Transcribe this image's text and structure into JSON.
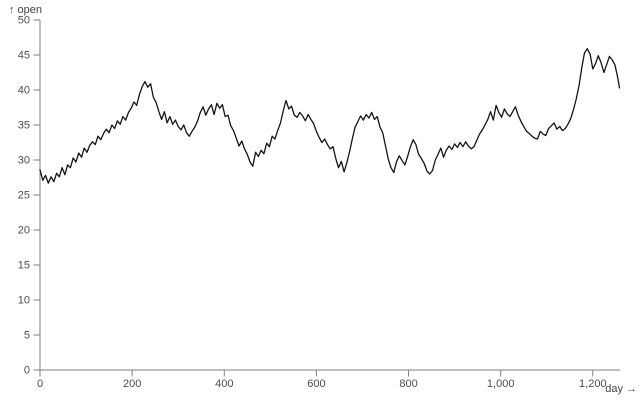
{
  "styles": {
    "background": "#ffffff",
    "axis_color": "#7f7f7f",
    "text_color": "#4d4d4d",
    "line_color": "#141414"
  },
  "chart_data": {
    "type": "line",
    "title": "",
    "grid": false,
    "legend": "none",
    "x_axis": {
      "label": "day",
      "title_display": "day →",
      "domain": [
        0,
        1259
      ],
      "ticks": [
        0,
        200,
        400,
        600,
        800,
        1000,
        1200
      ],
      "tick_labels": [
        "0",
        "200",
        "400",
        "600",
        "800",
        "1,000",
        "1,200"
      ]
    },
    "y_axis": {
      "label": "open",
      "title_display": "↑ open",
      "domain": [
        0,
        50
      ],
      "ticks": [
        0,
        5,
        10,
        15,
        20,
        25,
        30,
        35,
        40,
        45,
        50
      ],
      "tick_labels": [
        "0",
        "5",
        "10",
        "15",
        "20",
        "25",
        "30",
        "35",
        "40",
        "45",
        "50"
      ]
    },
    "series": [
      {
        "name": "open",
        "color": "#141414",
        "points": [
          [
            0,
            28.6
          ],
          [
            6,
            27.1
          ],
          [
            12,
            27.8
          ],
          [
            18,
            26.7
          ],
          [
            24,
            27.6
          ],
          [
            30,
            26.9
          ],
          [
            36,
            28.1
          ],
          [
            42,
            27.6
          ],
          [
            48,
            28.9
          ],
          [
            54,
            27.9
          ],
          [
            60,
            29.3
          ],
          [
            66,
            28.9
          ],
          [
            72,
            30.3
          ],
          [
            78,
            29.7
          ],
          [
            84,
            31.0
          ],
          [
            90,
            30.4
          ],
          [
            96,
            31.7
          ],
          [
            102,
            31.1
          ],
          [
            108,
            32.1
          ],
          [
            114,
            32.6
          ],
          [
            120,
            32.2
          ],
          [
            126,
            33.4
          ],
          [
            132,
            32.9
          ],
          [
            138,
            33.8
          ],
          [
            144,
            34.4
          ],
          [
            150,
            33.9
          ],
          [
            156,
            35.0
          ],
          [
            162,
            34.5
          ],
          [
            168,
            35.6
          ],
          [
            174,
            35.1
          ],
          [
            180,
            36.2
          ],
          [
            186,
            35.7
          ],
          [
            192,
            36.8
          ],
          [
            198,
            37.4
          ],
          [
            204,
            38.3
          ],
          [
            210,
            37.8
          ],
          [
            216,
            39.4
          ],
          [
            222,
            40.5
          ],
          [
            228,
            41.2
          ],
          [
            234,
            40.4
          ],
          [
            240,
            40.9
          ],
          [
            246,
            39.0
          ],
          [
            252,
            38.2
          ],
          [
            258,
            36.9
          ],
          [
            264,
            35.8
          ],
          [
            270,
            36.9
          ],
          [
            276,
            35.3
          ],
          [
            282,
            36.2
          ],
          [
            288,
            35.1
          ],
          [
            294,
            35.7
          ],
          [
            300,
            34.8
          ],
          [
            306,
            34.3
          ],
          [
            312,
            35.0
          ],
          [
            318,
            33.9
          ],
          [
            324,
            33.4
          ],
          [
            330,
            34.1
          ],
          [
            336,
            34.7
          ],
          [
            342,
            35.6
          ],
          [
            348,
            36.8
          ],
          [
            354,
            37.6
          ],
          [
            360,
            36.4
          ],
          [
            366,
            37.3
          ],
          [
            372,
            37.9
          ],
          [
            378,
            36.5
          ],
          [
            384,
            38.1
          ],
          [
            390,
            37.4
          ],
          [
            396,
            37.9
          ],
          [
            402,
            36.2
          ],
          [
            408,
            36.4
          ],
          [
            414,
            34.9
          ],
          [
            420,
            34.2
          ],
          [
            426,
            33.1
          ],
          [
            432,
            32.0
          ],
          [
            438,
            32.7
          ],
          [
            444,
            31.6
          ],
          [
            450,
            30.8
          ],
          [
            456,
            29.7
          ],
          [
            462,
            29.1
          ],
          [
            468,
            31.1
          ],
          [
            474,
            30.5
          ],
          [
            480,
            31.4
          ],
          [
            486,
            30.9
          ],
          [
            492,
            32.4
          ],
          [
            498,
            31.9
          ],
          [
            504,
            33.4
          ],
          [
            510,
            33.0
          ],
          [
            516,
            34.2
          ],
          [
            522,
            35.3
          ],
          [
            528,
            37.0
          ],
          [
            534,
            38.5
          ],
          [
            540,
            37.3
          ],
          [
            546,
            37.7
          ],
          [
            552,
            36.4
          ],
          [
            558,
            36.1
          ],
          [
            564,
            36.8
          ],
          [
            570,
            36.3
          ],
          [
            576,
            35.6
          ],
          [
            582,
            36.5
          ],
          [
            588,
            35.8
          ],
          [
            594,
            35.2
          ],
          [
            600,
            34.1
          ],
          [
            606,
            33.2
          ],
          [
            612,
            32.5
          ],
          [
            618,
            33.0
          ],
          [
            624,
            32.2
          ],
          [
            630,
            31.6
          ],
          [
            636,
            31.9
          ],
          [
            642,
            30.2
          ],
          [
            648,
            28.9
          ],
          [
            654,
            29.8
          ],
          [
            660,
            28.3
          ],
          [
            666,
            29.6
          ],
          [
            672,
            31.2
          ],
          [
            678,
            33.0
          ],
          [
            684,
            34.7
          ],
          [
            690,
            35.5
          ],
          [
            696,
            36.3
          ],
          [
            702,
            35.7
          ],
          [
            708,
            36.5
          ],
          [
            714,
            36.0
          ],
          [
            720,
            36.8
          ],
          [
            726,
            35.8
          ],
          [
            732,
            36.2
          ],
          [
            738,
            34.7
          ],
          [
            744,
            33.9
          ],
          [
            750,
            32.0
          ],
          [
            756,
            30.1
          ],
          [
            762,
            28.9
          ],
          [
            768,
            28.2
          ],
          [
            774,
            29.8
          ],
          [
            780,
            30.6
          ],
          [
            786,
            29.9
          ],
          [
            792,
            29.3
          ],
          [
            798,
            30.5
          ],
          [
            804,
            31.9
          ],
          [
            810,
            32.9
          ],
          [
            816,
            32.2
          ],
          [
            822,
            30.8
          ],
          [
            828,
            30.2
          ],
          [
            834,
            29.5
          ],
          [
            840,
            28.4
          ],
          [
            846,
            28.0
          ],
          [
            852,
            28.5
          ],
          [
            858,
            30.0
          ],
          [
            864,
            30.8
          ],
          [
            870,
            31.7
          ],
          [
            876,
            30.4
          ],
          [
            882,
            31.4
          ],
          [
            888,
            32.0
          ],
          [
            894,
            31.5
          ],
          [
            900,
            32.3
          ],
          [
            906,
            31.8
          ],
          [
            912,
            32.5
          ],
          [
            918,
            31.9
          ],
          [
            924,
            32.6
          ],
          [
            930,
            32.0
          ],
          [
            936,
            31.6
          ],
          [
            942,
            31.9
          ],
          [
            948,
            32.8
          ],
          [
            954,
            33.7
          ],
          [
            960,
            34.3
          ],
          [
            966,
            35.0
          ],
          [
            972,
            35.8
          ],
          [
            978,
            36.9
          ],
          [
            984,
            35.7
          ],
          [
            990,
            37.8
          ],
          [
            996,
            36.8
          ],
          [
            1002,
            36.1
          ],
          [
            1008,
            37.3
          ],
          [
            1014,
            36.6
          ],
          [
            1020,
            36.2
          ],
          [
            1026,
            36.9
          ],
          [
            1032,
            37.6
          ],
          [
            1038,
            36.4
          ],
          [
            1044,
            35.5
          ],
          [
            1050,
            34.8
          ],
          [
            1056,
            34.1
          ],
          [
            1062,
            33.8
          ],
          [
            1068,
            33.4
          ],
          [
            1074,
            33.1
          ],
          [
            1080,
            33.0
          ],
          [
            1086,
            34.1
          ],
          [
            1092,
            33.7
          ],
          [
            1098,
            33.5
          ],
          [
            1104,
            34.5
          ],
          [
            1110,
            34.9
          ],
          [
            1116,
            35.3
          ],
          [
            1122,
            34.4
          ],
          [
            1128,
            34.8
          ],
          [
            1134,
            34.2
          ],
          [
            1140,
            34.5
          ],
          [
            1146,
            35.1
          ],
          [
            1152,
            35.9
          ],
          [
            1158,
            37.2
          ],
          [
            1164,
            38.7
          ],
          [
            1170,
            40.6
          ],
          [
            1176,
            43.2
          ],
          [
            1182,
            45.3
          ],
          [
            1188,
            45.9
          ],
          [
            1194,
            45.1
          ],
          [
            1200,
            43.0
          ],
          [
            1206,
            43.8
          ],
          [
            1212,
            44.9
          ],
          [
            1218,
            43.9
          ],
          [
            1224,
            42.5
          ],
          [
            1230,
            43.6
          ],
          [
            1236,
            44.8
          ],
          [
            1242,
            44.3
          ],
          [
            1248,
            43.6
          ],
          [
            1254,
            41.8
          ],
          [
            1258,
            40.3
          ]
        ]
      }
    ]
  }
}
